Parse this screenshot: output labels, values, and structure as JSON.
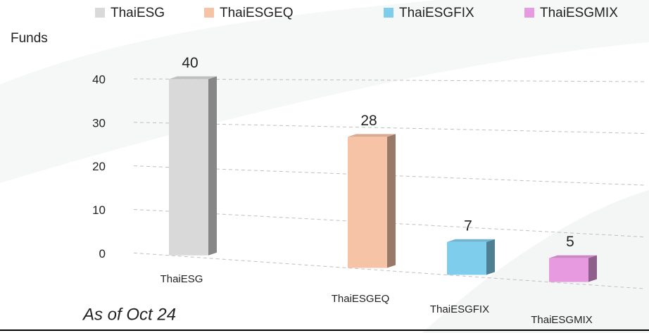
{
  "chart_data": {
    "type": "bar3d",
    "y_label": "Funds",
    "annotation": "As of Oct 24",
    "categories": [
      "ThaiESG",
      "ThaiESGEQ",
      "ThaiESGFIX",
      "ThaiESGMIX"
    ],
    "values": [
      40,
      28,
      7,
      5
    ],
    "colors": [
      "#d9d9d9",
      "#f7c3a6",
      "#7fcdec",
      "#e79ae0"
    ],
    "ylim": [
      0,
      40
    ],
    "yticks": [
      0,
      10,
      20,
      30,
      40
    ],
    "grid": true,
    "legend": "top"
  }
}
